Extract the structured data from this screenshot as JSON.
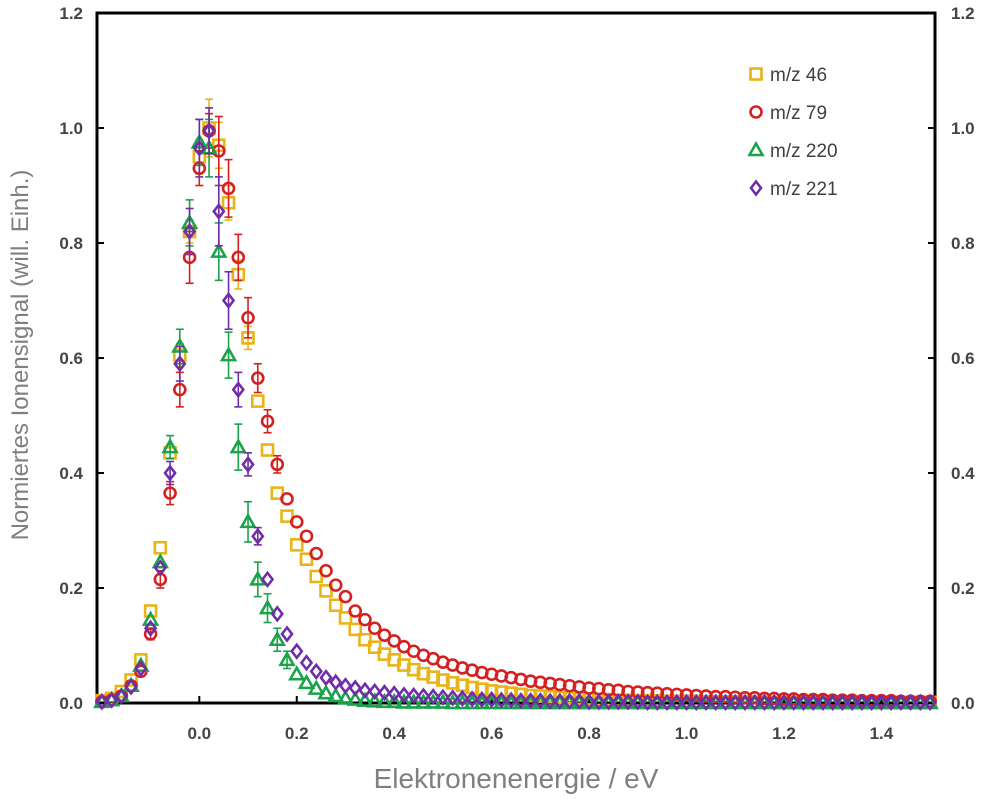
{
  "chart_data": {
    "type": "scatter",
    "xlabel": "Elektronenenergie / eV",
    "ylabel": "Normiertes Ionensignal (will. Einh.)",
    "xlim": [
      -0.21,
      1.51
    ],
    "ylim": [
      0,
      1.2
    ],
    "x_ticks": [
      "0.0",
      "0.2",
      "0.4",
      "0.6",
      "0.8",
      "1.0",
      "1.2",
      "1.4"
    ],
    "y_ticks": [
      "0.0",
      "0.2",
      "0.4",
      "0.6",
      "0.8",
      "1.0",
      "1.2"
    ],
    "legend_position": "top-right",
    "grid": false,
    "series": [
      {
        "name": "m/z 46",
        "marker": "square",
        "color": "#e8b417",
        "x": [
          -0.2,
          -0.18,
          -0.16,
          -0.14,
          -0.12,
          -0.1,
          -0.08,
          -0.06,
          -0.04,
          -0.02,
          0.0,
          0.02,
          0.04,
          0.06,
          0.08,
          0.1,
          0.12,
          0.14,
          0.16,
          0.18,
          0.2,
          0.22,
          0.24,
          0.26,
          0.28,
          0.3,
          0.32,
          0.34,
          0.36,
          0.38,
          0.4,
          0.42,
          0.44,
          0.46,
          0.48,
          0.5,
          0.52,
          0.54,
          0.56,
          0.58,
          0.6,
          0.62,
          0.64,
          0.66,
          0.68,
          0.7,
          0.72,
          0.74,
          0.76,
          0.78,
          0.8,
          0.82,
          0.84,
          0.86,
          0.88,
          0.9,
          0.92,
          0.94,
          0.96,
          0.98,
          1.0,
          1.02,
          1.04,
          1.06,
          1.08,
          1.1,
          1.12,
          1.14,
          1.16,
          1.18,
          1.2,
          1.22,
          1.24,
          1.26,
          1.28,
          1.3,
          1.32,
          1.34,
          1.36,
          1.38,
          1.4,
          1.42,
          1.44,
          1.46,
          1.48,
          1.5
        ],
        "y": [
          0.004,
          0.008,
          0.02,
          0.04,
          0.075,
          0.16,
          0.27,
          0.435,
          0.605,
          0.82,
          0.95,
          1.0,
          0.97,
          0.87,
          0.745,
          0.635,
          0.525,
          0.44,
          0.365,
          0.325,
          0.275,
          0.25,
          0.22,
          0.195,
          0.17,
          0.148,
          0.128,
          0.11,
          0.097,
          0.085,
          0.075,
          0.066,
          0.058,
          0.051,
          0.045,
          0.04,
          0.035,
          0.031,
          0.027,
          0.024,
          0.021,
          0.019,
          0.017,
          0.015,
          0.013,
          0.012,
          0.011,
          0.01,
          0.009,
          0.008,
          0.007,
          0.006,
          0.006,
          0.005,
          0.005,
          0.004,
          0.004,
          0.004,
          0.003,
          0.003,
          0.003,
          0.003,
          0.002,
          0.002,
          0.002,
          0.002,
          0.002,
          0.002,
          0.002,
          0.001,
          0.001,
          0.001,
          0.001,
          0.001,
          0.001,
          0.001,
          0.001,
          0.001,
          0.001,
          0.001,
          0.001,
          0.001,
          0.001,
          0.001,
          0.001,
          0.001
        ],
        "err": [
          0,
          0,
          0,
          0,
          0,
          0,
          0,
          0,
          0.02,
          0.02,
          0.03,
          0.05,
          0.04,
          0.03,
          0.025,
          0.02,
          0,
          0,
          0,
          0,
          0,
          0,
          0,
          0,
          0,
          0,
          0,
          0,
          0,
          0,
          0,
          0,
          0,
          0,
          0,
          0,
          0,
          0,
          0,
          0,
          0,
          0,
          0,
          0,
          0,
          0,
          0,
          0,
          0,
          0,
          0,
          0,
          0,
          0,
          0,
          0,
          0,
          0,
          0,
          0,
          0,
          0,
          0,
          0,
          0,
          0,
          0,
          0,
          0,
          0,
          0,
          0,
          0,
          0,
          0,
          0,
          0,
          0,
          0,
          0,
          0,
          0,
          0,
          0,
          0,
          0
        ]
      },
      {
        "name": "m/z 79",
        "marker": "circle",
        "color": "#d62020",
        "x": [
          -0.2,
          -0.18,
          -0.16,
          -0.14,
          -0.12,
          -0.1,
          -0.08,
          -0.06,
          -0.04,
          -0.02,
          0.0,
          0.02,
          0.04,
          0.06,
          0.08,
          0.1,
          0.12,
          0.14,
          0.16,
          0.18,
          0.2,
          0.22,
          0.24,
          0.26,
          0.28,
          0.3,
          0.32,
          0.34,
          0.36,
          0.38,
          0.4,
          0.42,
          0.44,
          0.46,
          0.48,
          0.5,
          0.52,
          0.54,
          0.56,
          0.58,
          0.6,
          0.62,
          0.64,
          0.66,
          0.68,
          0.7,
          0.72,
          0.74,
          0.76,
          0.78,
          0.8,
          0.82,
          0.84,
          0.86,
          0.88,
          0.9,
          0.92,
          0.94,
          0.96,
          0.98,
          1.0,
          1.02,
          1.04,
          1.06,
          1.08,
          1.1,
          1.12,
          1.14,
          1.16,
          1.18,
          1.2,
          1.22,
          1.24,
          1.26,
          1.28,
          1.3,
          1.32,
          1.34,
          1.36,
          1.38,
          1.4,
          1.42,
          1.44,
          1.46,
          1.48,
          1.5
        ],
        "y": [
          0.002,
          0.005,
          0.012,
          0.03,
          0.055,
          0.12,
          0.215,
          0.365,
          0.545,
          0.775,
          0.93,
          0.995,
          0.96,
          0.895,
          0.775,
          0.67,
          0.565,
          0.49,
          0.415,
          0.355,
          0.315,
          0.29,
          0.26,
          0.23,
          0.205,
          0.185,
          0.16,
          0.145,
          0.13,
          0.118,
          0.108,
          0.098,
          0.09,
          0.083,
          0.077,
          0.071,
          0.066,
          0.061,
          0.057,
          0.053,
          0.05,
          0.047,
          0.044,
          0.041,
          0.038,
          0.036,
          0.034,
          0.032,
          0.03,
          0.028,
          0.026,
          0.025,
          0.023,
          0.022,
          0.02,
          0.019,
          0.018,
          0.017,
          0.016,
          0.015,
          0.014,
          0.013,
          0.012,
          0.011,
          0.011,
          0.01,
          0.009,
          0.009,
          0.008,
          0.008,
          0.007,
          0.007,
          0.006,
          0.006,
          0.006,
          0.005,
          0.005,
          0.005,
          0.004,
          0.004,
          0.004,
          0.004,
          0.003,
          0.003,
          0.003,
          0.003
        ],
        "err": [
          0,
          0,
          0,
          0,
          0,
          0.01,
          0.015,
          0.02,
          0.03,
          0.045,
          0.03,
          0.03,
          0.06,
          0.05,
          0.04,
          0.035,
          0.025,
          0.02,
          0.015,
          0,
          0,
          0,
          0,
          0,
          0,
          0,
          0,
          0,
          0,
          0,
          0,
          0,
          0,
          0,
          0,
          0,
          0,
          0,
          0,
          0,
          0,
          0,
          0,
          0,
          0,
          0,
          0,
          0,
          0,
          0,
          0,
          0,
          0,
          0,
          0,
          0,
          0,
          0,
          0,
          0,
          0,
          0,
          0,
          0,
          0,
          0,
          0,
          0,
          0,
          0,
          0,
          0,
          0,
          0,
          0,
          0,
          0,
          0,
          0,
          0,
          0,
          0,
          0,
          0,
          0,
          0
        ]
      },
      {
        "name": "m/z 220",
        "marker": "triangle",
        "color": "#1aa34a",
        "x": [
          -0.2,
          -0.18,
          -0.16,
          -0.14,
          -0.12,
          -0.1,
          -0.08,
          -0.06,
          -0.04,
          -0.02,
          0.0,
          0.02,
          0.04,
          0.06,
          0.08,
          0.1,
          0.12,
          0.14,
          0.16,
          0.18,
          0.2,
          0.22,
          0.24,
          0.26,
          0.28,
          0.3,
          0.32,
          0.34,
          0.36,
          0.38,
          0.4,
          0.42,
          0.44,
          0.46,
          0.48,
          0.5,
          0.52,
          0.54,
          0.56,
          0.58,
          0.6,
          0.62,
          0.64,
          0.66,
          0.68,
          0.7,
          0.72,
          0.74,
          0.76,
          0.78,
          0.8,
          0.82,
          0.84,
          0.86,
          0.88,
          0.9,
          0.92,
          0.94,
          0.96,
          0.98,
          1.0,
          1.02,
          1.04,
          1.06,
          1.08,
          1.1,
          1.12,
          1.14,
          1.16,
          1.18,
          1.2,
          1.22,
          1.24,
          1.26,
          1.28,
          1.3,
          1.32,
          1.34,
          1.36,
          1.38,
          1.4,
          1.42,
          1.44,
          1.46,
          1.48,
          1.5
        ],
        "y": [
          0.002,
          0.005,
          0.012,
          0.03,
          0.065,
          0.145,
          0.245,
          0.445,
          0.62,
          0.835,
          0.975,
          0.965,
          0.785,
          0.605,
          0.445,
          0.315,
          0.215,
          0.165,
          0.11,
          0.075,
          0.05,
          0.035,
          0.025,
          0.017,
          0.012,
          0.008,
          0.006,
          0.004,
          0.003,
          0.002,
          0.002,
          0.001,
          0.001,
          0.001,
          0.001,
          0.001,
          0,
          0,
          0,
          0,
          0,
          0,
          0,
          0,
          0,
          0,
          0,
          0,
          0,
          0,
          0,
          0,
          0,
          0,
          0,
          0,
          0,
          0,
          0,
          0,
          0,
          0,
          0,
          0,
          0,
          0,
          0,
          0,
          0,
          0,
          0,
          0,
          0,
          0,
          0,
          0,
          0,
          0,
          0,
          0,
          0,
          0,
          0,
          0,
          0,
          0
        ],
        "err": [
          0,
          0,
          0,
          0,
          0,
          0,
          0,
          0.02,
          0.03,
          0.04,
          0.04,
          0.05,
          0.05,
          0.04,
          0.04,
          0.035,
          0.03,
          0.025,
          0.02,
          0.015,
          0,
          0,
          0,
          0,
          0,
          0,
          0,
          0,
          0,
          0,
          0,
          0,
          0,
          0,
          0,
          0,
          0,
          0,
          0,
          0,
          0,
          0,
          0,
          0,
          0,
          0,
          0,
          0,
          0,
          0,
          0,
          0,
          0,
          0,
          0,
          0,
          0,
          0,
          0,
          0,
          0,
          0,
          0,
          0,
          0,
          0,
          0,
          0,
          0,
          0,
          0,
          0,
          0,
          0,
          0,
          0,
          0,
          0,
          0,
          0,
          0,
          0,
          0,
          0,
          0,
          0
        ]
      },
      {
        "name": "m/z 221",
        "marker": "diamond",
        "color": "#6f2da8",
        "x": [
          -0.2,
          -0.18,
          -0.16,
          -0.14,
          -0.12,
          -0.1,
          -0.08,
          -0.06,
          -0.04,
          -0.02,
          0.0,
          0.02,
          0.04,
          0.06,
          0.08,
          0.1,
          0.12,
          0.14,
          0.16,
          0.18,
          0.2,
          0.22,
          0.24,
          0.26,
          0.28,
          0.3,
          0.32,
          0.34,
          0.36,
          0.38,
          0.4,
          0.42,
          0.44,
          0.46,
          0.48,
          0.5,
          0.52,
          0.54,
          0.56,
          0.58,
          0.6,
          0.62,
          0.64,
          0.66,
          0.68,
          0.7,
          0.72,
          0.74,
          0.76,
          0.78,
          0.8,
          0.82,
          0.84,
          0.86,
          0.88,
          0.9,
          0.92,
          0.94,
          0.96,
          0.98,
          1.0,
          1.02,
          1.04,
          1.06,
          1.08,
          1.1,
          1.12,
          1.14,
          1.16,
          1.18,
          1.2,
          1.22,
          1.24,
          1.26,
          1.28,
          1.3,
          1.32,
          1.34,
          1.36,
          1.38,
          1.4,
          1.42,
          1.44,
          1.46,
          1.48,
          1.5
        ],
        "y": [
          0.002,
          0.005,
          0.012,
          0.028,
          0.06,
          0.13,
          0.235,
          0.4,
          0.59,
          0.82,
          0.965,
          0.995,
          0.855,
          0.7,
          0.545,
          0.415,
          0.29,
          0.215,
          0.155,
          0.12,
          0.09,
          0.07,
          0.055,
          0.044,
          0.036,
          0.03,
          0.026,
          0.022,
          0.02,
          0.018,
          0.016,
          0.014,
          0.013,
          0.012,
          0.011,
          0.01,
          0.009,
          0.008,
          0.007,
          0.006,
          0.006,
          0.005,
          0.005,
          0.004,
          0.004,
          0.004,
          0.003,
          0.003,
          0.003,
          0.003,
          0.002,
          0.002,
          0.002,
          0.002,
          0.002,
          0.002,
          0.001,
          0.001,
          0.001,
          0.001,
          0.001,
          0.001,
          0.001,
          0.001,
          0.001,
          0.001,
          0.001,
          0.001,
          0.001,
          0.001,
          0.001,
          0.001,
          0.001,
          0.001,
          0.001,
          0.001,
          0.001,
          0.001,
          0.001,
          0.001,
          0.001,
          0.001,
          0.001,
          0.001,
          0.001,
          0.001
        ],
        "err": [
          0,
          0,
          0,
          0,
          0,
          0,
          0,
          0.02,
          0.03,
          0.04,
          0.05,
          0.04,
          0.06,
          0.05,
          0.03,
          0.02,
          0.015,
          0,
          0,
          0,
          0,
          0,
          0,
          0,
          0,
          0,
          0,
          0,
          0,
          0,
          0,
          0,
          0,
          0,
          0,
          0,
          0,
          0,
          0,
          0,
          0,
          0,
          0,
          0,
          0,
          0,
          0,
          0,
          0,
          0,
          0,
          0,
          0,
          0,
          0,
          0,
          0,
          0,
          0,
          0,
          0,
          0,
          0,
          0,
          0,
          0,
          0,
          0,
          0,
          0,
          0,
          0,
          0,
          0,
          0,
          0,
          0,
          0,
          0,
          0,
          0,
          0,
          0,
          0,
          0,
          0
        ]
      }
    ]
  }
}
